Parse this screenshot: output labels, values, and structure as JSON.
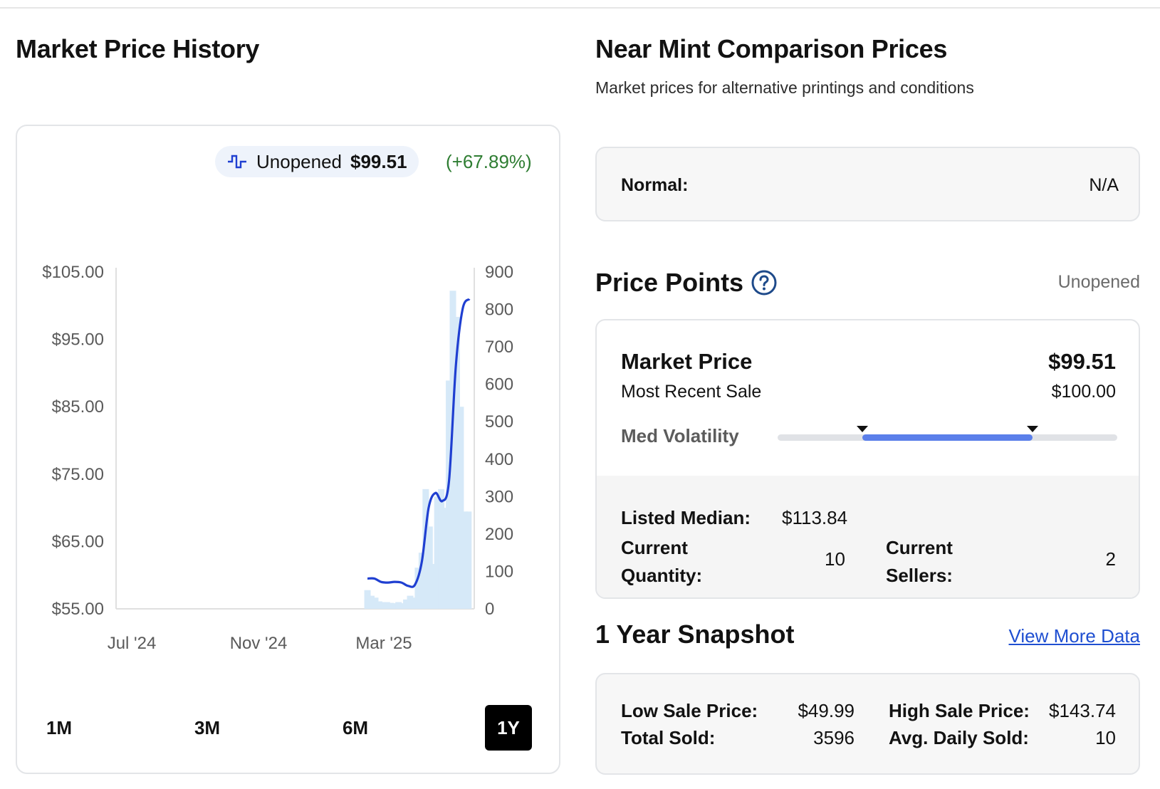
{
  "market_price_history": {
    "title": "Market Price History",
    "legend": {
      "icon": "step-line-icon",
      "name": "Unopened",
      "price": "$99.51",
      "change": "(+67.89%)"
    },
    "range_buttons": [
      {
        "label": "1M",
        "active": false
      },
      {
        "label": "3M",
        "active": false
      },
      {
        "label": "6M",
        "active": false
      },
      {
        "label": "1Y",
        "active": true
      }
    ]
  },
  "chart_data": {
    "type": "line",
    "title": "",
    "xlabel": "",
    "ylabel": "",
    "x_ticks": [
      "Jul '24",
      "Nov '24",
      "Mar '25"
    ],
    "y_left_ticks": [
      "$105.00",
      "$95.00",
      "$85.00",
      "$75.00",
      "$65.00",
      "$55.00"
    ],
    "y_right_ticks": [
      "900",
      "800",
      "700",
      "600",
      "500",
      "400",
      "300",
      "200",
      "100",
      "0"
    ],
    "ylim_left": [
      55,
      105
    ],
    "ylim_right": [
      0,
      900
    ],
    "colors": {
      "line": "#1f3fd1",
      "bars": "#d6e9f8"
    },
    "series": [
      {
        "axis": "left",
        "style": "line",
        "x": [
          "2025-02-20",
          "2025-02-27",
          "2025-03-06",
          "2025-03-13",
          "2025-03-20",
          "2025-03-27",
          "2025-04-03",
          "2025-04-10",
          "2025-04-17",
          "2025-04-24",
          "2025-05-01",
          "2025-05-08",
          "2025-05-15",
          "2025-05-22",
          "2025-05-29",
          "2025-06-05"
        ],
        "values": [
          59.5,
          59.5,
          59.0,
          58.9,
          59.0,
          58.9,
          58.4,
          58.6,
          62.0,
          70.0,
          72.2,
          71.0,
          74.0,
          91.0,
          99.5,
          101.0
        ]
      },
      {
        "axis": "right",
        "style": "bar",
        "x": [
          "2025-02-20",
          "2025-02-24",
          "2025-02-28",
          "2025-03-04",
          "2025-03-08",
          "2025-03-12",
          "2025-03-16",
          "2025-03-20",
          "2025-03-24",
          "2025-03-28",
          "2025-04-01",
          "2025-04-05",
          "2025-04-09",
          "2025-04-13",
          "2025-04-17",
          "2025-04-21",
          "2025-04-25",
          "2025-04-29",
          "2025-05-03",
          "2025-05-07",
          "2025-05-11",
          "2025-05-15",
          "2025-05-19",
          "2025-05-23",
          "2025-05-27",
          "2025-05-31",
          "2025-06-04"
        ],
        "values": [
          50,
          35,
          30,
          20,
          18,
          18,
          16,
          15,
          18,
          15,
          25,
          35,
          30,
          110,
          150,
          320,
          220,
          120,
          300,
          320,
          270,
          610,
          850,
          780,
          540,
          260,
          260
        ]
      }
    ]
  },
  "comparison": {
    "title": "Near Mint Comparison Prices",
    "subtitle": "Market prices for alternative printings and conditions",
    "normal_label": "Normal:",
    "normal_value": "N/A"
  },
  "price_points": {
    "title": "Price Points",
    "help_icon": "question-circle-icon",
    "condition": "Unopened",
    "market_price_label": "Market Price",
    "market_price_value": "$99.51",
    "recent_sale_label": "Most Recent Sale",
    "recent_sale_value": "$100.00",
    "volatility_label": "Med Volatility",
    "volatility_range": [
      0.25,
      0.75
    ],
    "listed_median_label": "Listed Median:",
    "listed_median_value": "$113.84",
    "current_quantity_label": "Current Quantity:",
    "current_quantity_value": "10",
    "current_sellers_label": "Current Sellers:",
    "current_sellers_value": "2"
  },
  "snapshot": {
    "title": "1 Year Snapshot",
    "link": "View More Data",
    "low_sale_label": "Low Sale Price:",
    "low_sale_value": "$49.99",
    "high_sale_label": "High Sale Price:",
    "high_sale_value": "$143.74",
    "total_sold_label": "Total Sold:",
    "total_sold_value": "3596",
    "avg_daily_label": "Avg. Daily Sold:",
    "avg_daily_value": "10"
  }
}
